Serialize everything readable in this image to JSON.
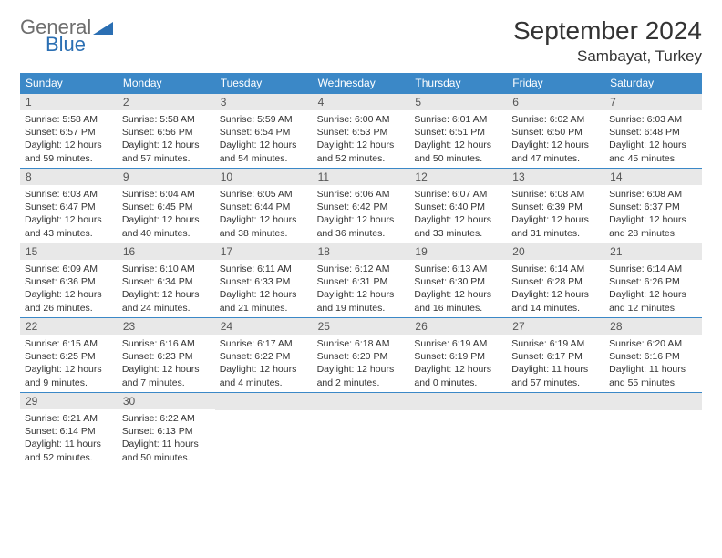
{
  "logo": {
    "name_top": "General",
    "name_bottom": "Blue",
    "color_top": "#6e6e6e",
    "color_bottom": "#2b6fb3"
  },
  "header": {
    "month": "September 2024",
    "location": "Sambayat, Turkey"
  },
  "colors": {
    "header_bg": "#3b88c7",
    "header_text": "#ffffff",
    "daynum_bg": "#e8e8e8",
    "daynum_text": "#555555",
    "border": "#3b88c7",
    "body_text": "#333333"
  },
  "weekdays": [
    "Sunday",
    "Monday",
    "Tuesday",
    "Wednesday",
    "Thursday",
    "Friday",
    "Saturday"
  ],
  "days": [
    {
      "n": "1",
      "sr": "5:58 AM",
      "ss": "6:57 PM",
      "dl": "12 hours and 59 minutes."
    },
    {
      "n": "2",
      "sr": "5:58 AM",
      "ss": "6:56 PM",
      "dl": "12 hours and 57 minutes."
    },
    {
      "n": "3",
      "sr": "5:59 AM",
      "ss": "6:54 PM",
      "dl": "12 hours and 54 minutes."
    },
    {
      "n": "4",
      "sr": "6:00 AM",
      "ss": "6:53 PM",
      "dl": "12 hours and 52 minutes."
    },
    {
      "n": "5",
      "sr": "6:01 AM",
      "ss": "6:51 PM",
      "dl": "12 hours and 50 minutes."
    },
    {
      "n": "6",
      "sr": "6:02 AM",
      "ss": "6:50 PM",
      "dl": "12 hours and 47 minutes."
    },
    {
      "n": "7",
      "sr": "6:03 AM",
      "ss": "6:48 PM",
      "dl": "12 hours and 45 minutes."
    },
    {
      "n": "8",
      "sr": "6:03 AM",
      "ss": "6:47 PM",
      "dl": "12 hours and 43 minutes."
    },
    {
      "n": "9",
      "sr": "6:04 AM",
      "ss": "6:45 PM",
      "dl": "12 hours and 40 minutes."
    },
    {
      "n": "10",
      "sr": "6:05 AM",
      "ss": "6:44 PM",
      "dl": "12 hours and 38 minutes."
    },
    {
      "n": "11",
      "sr": "6:06 AM",
      "ss": "6:42 PM",
      "dl": "12 hours and 36 minutes."
    },
    {
      "n": "12",
      "sr": "6:07 AM",
      "ss": "6:40 PM",
      "dl": "12 hours and 33 minutes."
    },
    {
      "n": "13",
      "sr": "6:08 AM",
      "ss": "6:39 PM",
      "dl": "12 hours and 31 minutes."
    },
    {
      "n": "14",
      "sr": "6:08 AM",
      "ss": "6:37 PM",
      "dl": "12 hours and 28 minutes."
    },
    {
      "n": "15",
      "sr": "6:09 AM",
      "ss": "6:36 PM",
      "dl": "12 hours and 26 minutes."
    },
    {
      "n": "16",
      "sr": "6:10 AM",
      "ss": "6:34 PM",
      "dl": "12 hours and 24 minutes."
    },
    {
      "n": "17",
      "sr": "6:11 AM",
      "ss": "6:33 PM",
      "dl": "12 hours and 21 minutes."
    },
    {
      "n": "18",
      "sr": "6:12 AM",
      "ss": "6:31 PM",
      "dl": "12 hours and 19 minutes."
    },
    {
      "n": "19",
      "sr": "6:13 AM",
      "ss": "6:30 PM",
      "dl": "12 hours and 16 minutes."
    },
    {
      "n": "20",
      "sr": "6:14 AM",
      "ss": "6:28 PM",
      "dl": "12 hours and 14 minutes."
    },
    {
      "n": "21",
      "sr": "6:14 AM",
      "ss": "6:26 PM",
      "dl": "12 hours and 12 minutes."
    },
    {
      "n": "22",
      "sr": "6:15 AM",
      "ss": "6:25 PM",
      "dl": "12 hours and 9 minutes."
    },
    {
      "n": "23",
      "sr": "6:16 AM",
      "ss": "6:23 PM",
      "dl": "12 hours and 7 minutes."
    },
    {
      "n": "24",
      "sr": "6:17 AM",
      "ss": "6:22 PM",
      "dl": "12 hours and 4 minutes."
    },
    {
      "n": "25",
      "sr": "6:18 AM",
      "ss": "6:20 PM",
      "dl": "12 hours and 2 minutes."
    },
    {
      "n": "26",
      "sr": "6:19 AM",
      "ss": "6:19 PM",
      "dl": "12 hours and 0 minutes."
    },
    {
      "n": "27",
      "sr": "6:19 AM",
      "ss": "6:17 PM",
      "dl": "11 hours and 57 minutes."
    },
    {
      "n": "28",
      "sr": "6:20 AM",
      "ss": "6:16 PM",
      "dl": "11 hours and 55 minutes."
    },
    {
      "n": "29",
      "sr": "6:21 AM",
      "ss": "6:14 PM",
      "dl": "11 hours and 52 minutes."
    },
    {
      "n": "30",
      "sr": "6:22 AM",
      "ss": "6:13 PM",
      "dl": "11 hours and 50 minutes."
    }
  ],
  "labels": {
    "sunrise": "Sunrise:",
    "sunset": "Sunset:",
    "daylight": "Daylight:"
  }
}
